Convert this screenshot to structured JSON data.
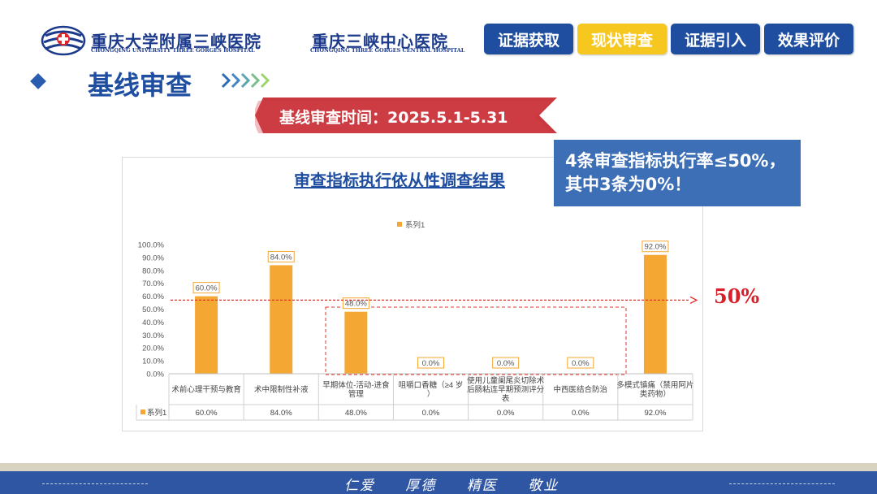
{
  "header": {
    "hospital1_cn": "重庆大学附属三峡医院",
    "hospital1_en": "CHONGQING UNIVERSITY THREE GORGES HOSPITAL",
    "hospital2_cn": "重庆三峡中心医院",
    "hospital2_en": "CHONGQING THREE GORGES CENTRAL HOSPITAL",
    "tabs": [
      {
        "label": "证据获取",
        "active": false
      },
      {
        "label": "现状审查",
        "active": true
      },
      {
        "label": "证据引入",
        "active": false
      },
      {
        "label": "效果评价",
        "active": false
      }
    ]
  },
  "section": {
    "title": "基线审查",
    "banner": "基线审查时间：2025.5.1-5.31"
  },
  "callout": {
    "line1": "4条审查指标执行率≤50%，",
    "line2": "其中3条为0%！"
  },
  "threshold_label": "50%",
  "chart_data": {
    "type": "bar",
    "title": "审查指标执行依从性调查结果",
    "legend": "系列1",
    "legend_position": "top",
    "categories": [
      "术前心理干预与教育",
      "术中限制性补液",
      "早期体位-活动-进食管理",
      "咀嚼口香糖（≥4 岁）",
      "使用儿童阑尾炎切除术后肠粘连早期预测评分表",
      "中西医结合防治",
      "多模式镇痛（禁用阿片类药物）"
    ],
    "series": [
      {
        "name": "系列1",
        "values": [
          60.0,
          84.0,
          48.0,
          0.0,
          0.0,
          0.0,
          92.0
        ]
      }
    ],
    "value_labels": [
      "60.0%",
      "84.0%",
      "48.0%",
      "0.0%",
      "0.0%",
      "0.0%",
      "92.0%"
    ],
    "yticks": [
      "100.0%",
      "90.0%",
      "80.0%",
      "70.0%",
      "60.0%",
      "50.0%",
      "40.0%",
      "30.0%",
      "20.0%",
      "10.0%",
      "0.0%"
    ],
    "ylim": [
      0,
      100
    ],
    "reference_line": 57,
    "grid": false,
    "bar_color": "#f5a733"
  },
  "footer": {
    "motto": [
      "仁爱",
      "厚德",
      "精医",
      "敬业"
    ]
  },
  "colors": {
    "brand": "#1f4ea1",
    "accent": "#f6c71f",
    "alert": "#d9202a"
  }
}
